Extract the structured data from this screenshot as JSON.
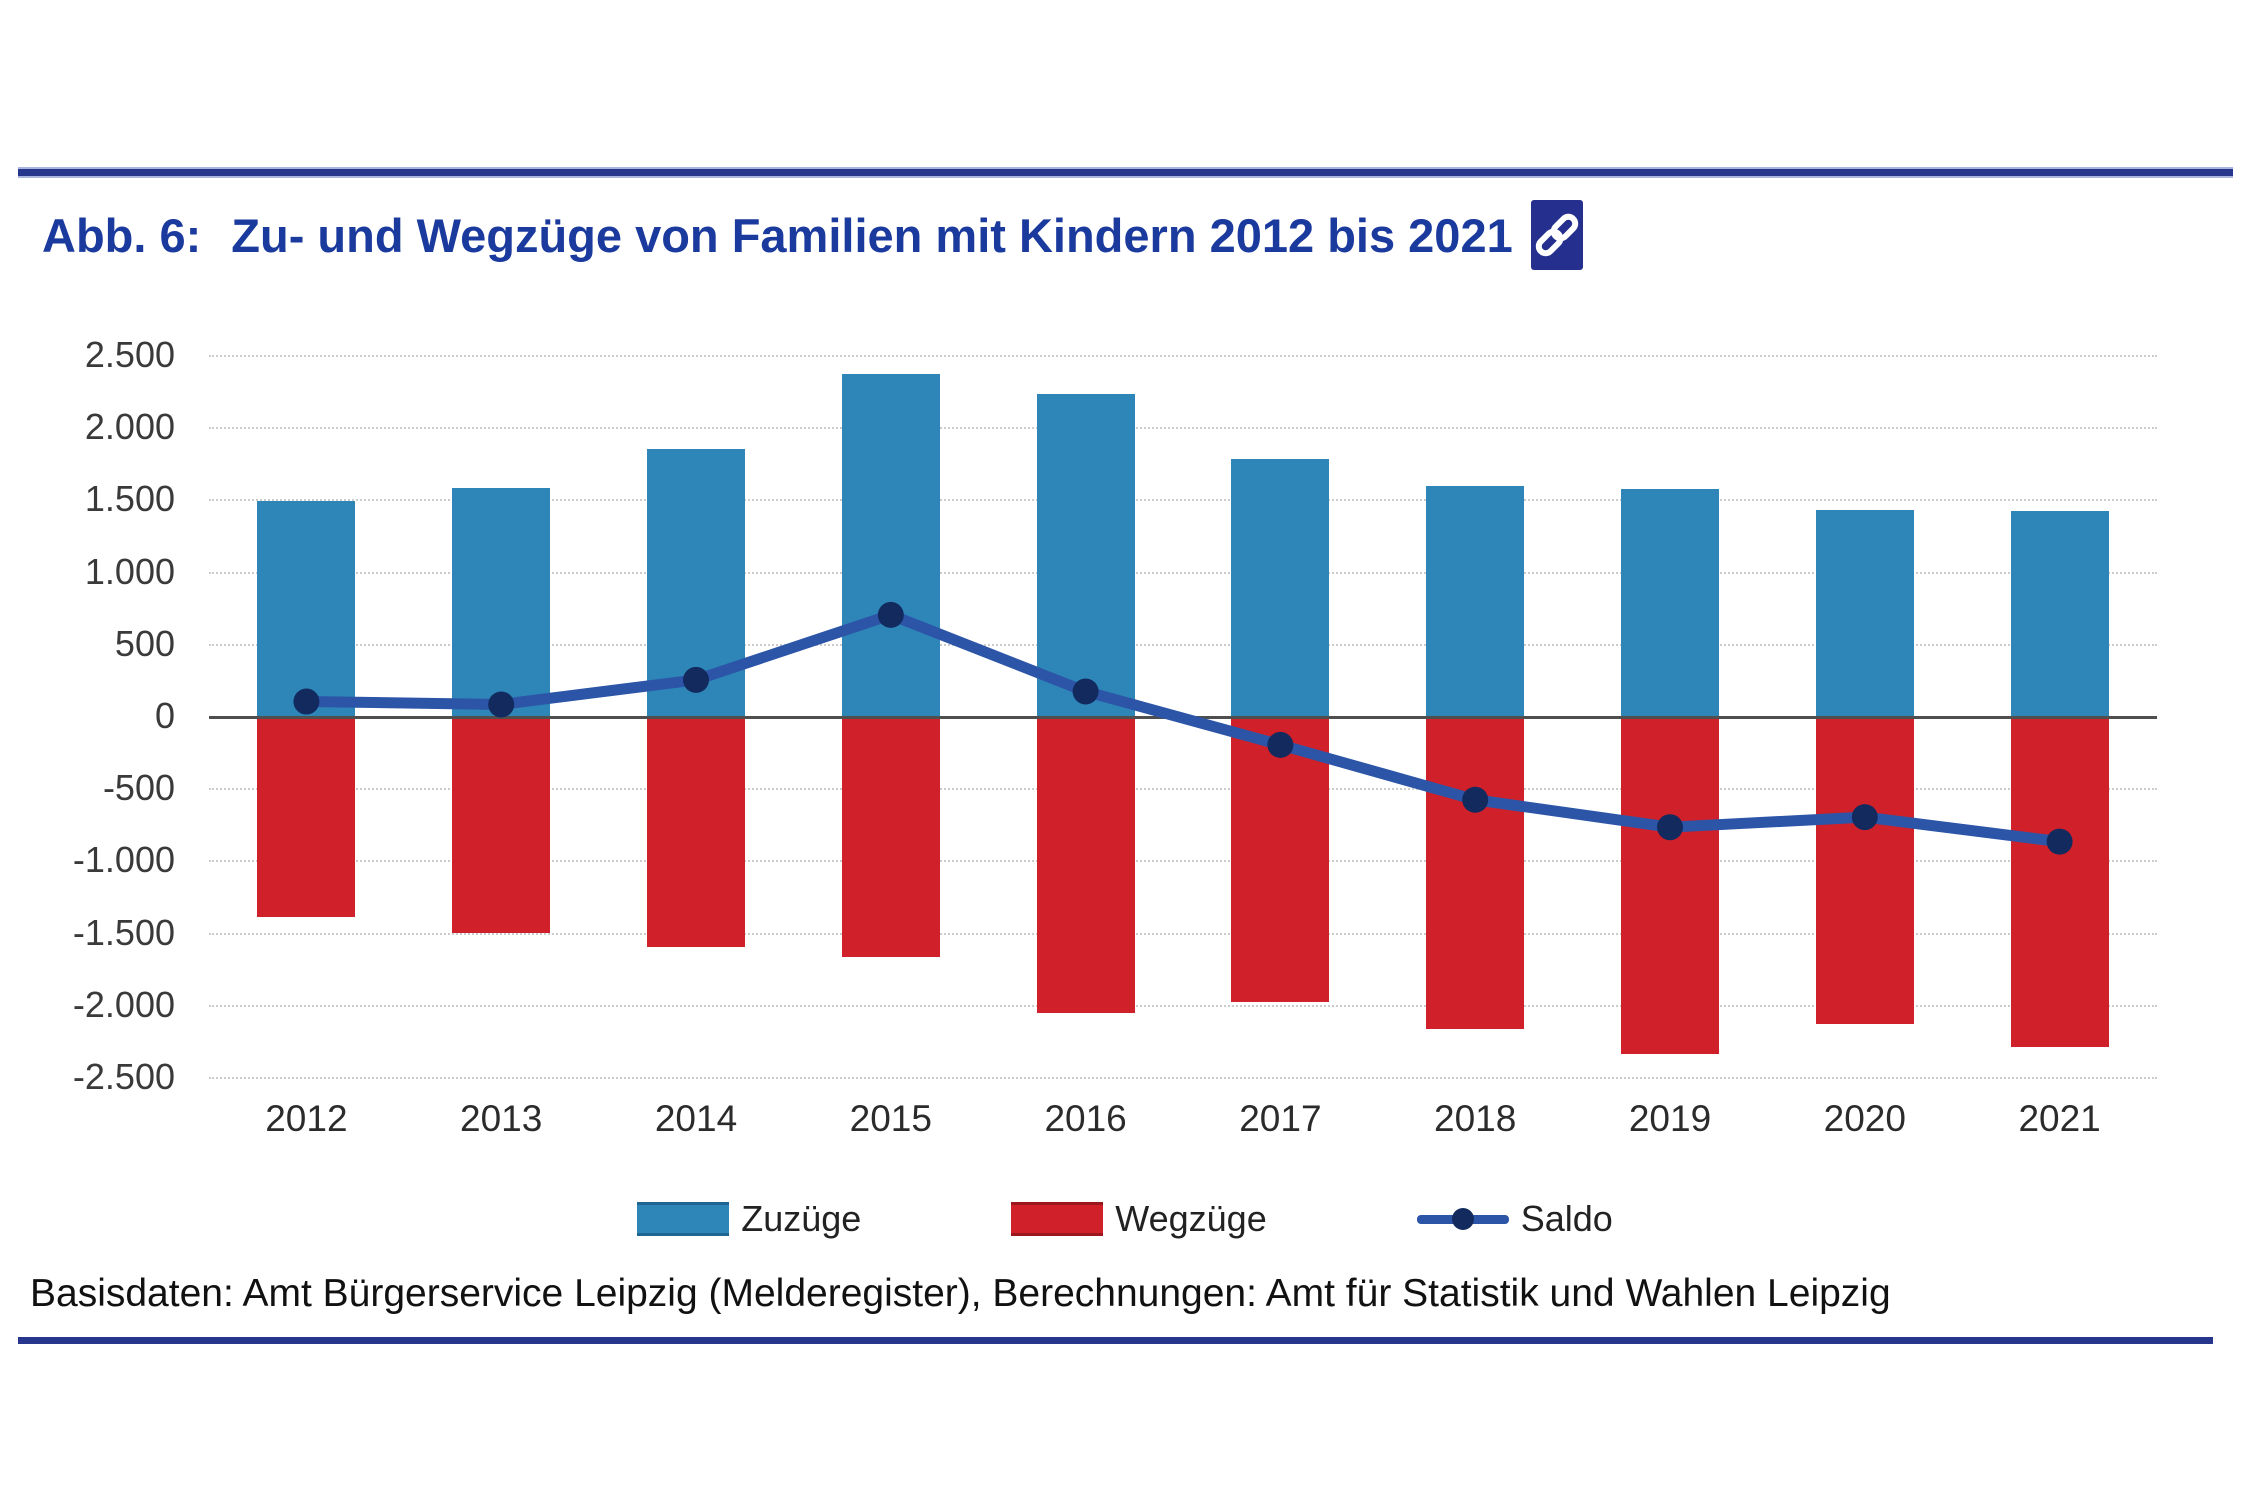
{
  "header": {
    "title_prefix": "Abb. 6:",
    "title_text": "Zu- und Wegzüge von Familien mit Kindern 2012 bis 2021",
    "title_color": "#1b3a9e",
    "link_icon": "chain-link"
  },
  "source_line": "Basisdaten: Amt Bürgerservice Leipzig (Melderegister), Berechnungen: Amt für Statistik und Wahlen Leipzig",
  "colors": {
    "rule": "#25368c",
    "grid": "#cccccc",
    "zero_line": "#4f4f4f",
    "axis_text": "#3a3a3a",
    "bar_blue": "#2e86b8",
    "bar_red": "#d0202a",
    "saldo_line": "#2c55a8",
    "saldo_marker": "#122a5e"
  },
  "chart_data": {
    "type": "bar",
    "subtype": "combo bar+line, bars diverging from zero",
    "title": "Zu- und Wegzüge von Familien mit Kindern 2012 bis 2021",
    "categories": [
      "2012",
      "2013",
      "2014",
      "2015",
      "2016",
      "2017",
      "2018",
      "2019",
      "2020",
      "2021"
    ],
    "series": [
      {
        "name": "Zuzüge",
        "type": "bar",
        "color": "#2e86b8",
        "values": [
          1490,
          1580,
          1850,
          2370,
          2230,
          1780,
          1590,
          1570,
          1430,
          1420
        ]
      },
      {
        "name": "Wegzüge",
        "type": "bar",
        "color": "#d0202a",
        "values": [
          -1390,
          -1500,
          -1600,
          -1670,
          -2060,
          -1980,
          -2170,
          -2340,
          -2130,
          -2290
        ]
      },
      {
        "name": "Saldo",
        "type": "line",
        "color": "#2c55a8",
        "marker_color": "#122a5e",
        "values": [
          100,
          80,
          250,
          700,
          170,
          -200,
          -580,
          -770,
          -700,
          -870
        ]
      }
    ],
    "xlabel": "",
    "ylabel": "",
    "ylim": [
      -2500,
      2500
    ],
    "ytick_step": 500,
    "yticks": [
      {
        "value": 2500,
        "label": "2.500"
      },
      {
        "value": 2000,
        "label": "2.000"
      },
      {
        "value": 1500,
        "label": "1.500"
      },
      {
        "value": 1000,
        "label": "1.000"
      },
      {
        "value": 500,
        "label": "500"
      },
      {
        "value": 0,
        "label": "0"
      },
      {
        "value": -500,
        "label": "-500"
      },
      {
        "value": -1000,
        "label": "-1.000"
      },
      {
        "value": -1500,
        "label": "-1.500"
      },
      {
        "value": -2000,
        "label": "-2.000"
      },
      {
        "value": -2500,
        "label": "-2.500"
      }
    ],
    "grid": true,
    "zero_line": true,
    "legend_position": "bottom-center",
    "legend": [
      {
        "label": "Zuzüge",
        "swatch": "bar-blue"
      },
      {
        "label": "Wegzüge",
        "swatch": "bar-red"
      },
      {
        "label": "Saldo",
        "swatch": "line-marker"
      }
    ]
  }
}
